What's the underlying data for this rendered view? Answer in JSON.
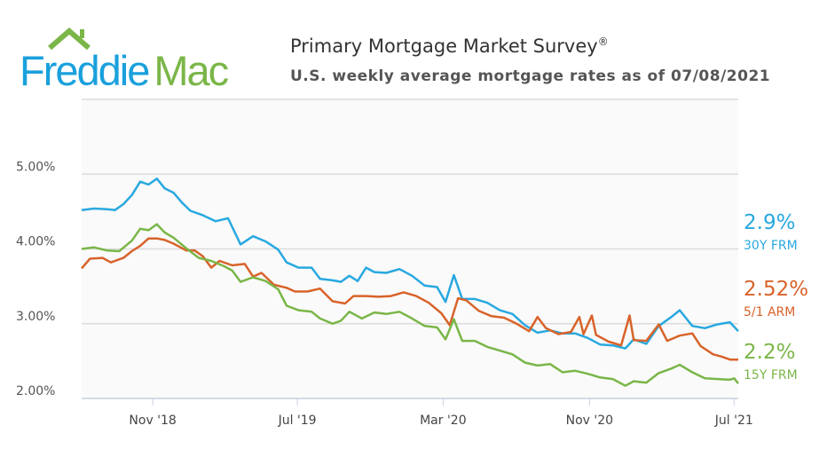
{
  "header": {
    "logo_text": "Freddie Mac",
    "logo_part1": "Freddie",
    "logo_part2": "Mac",
    "title": "Primary Mortgage Market Survey",
    "title_mark": "®",
    "subtitle": "U.S. weekly average mortgage rates as of 07/08/2021"
  },
  "colors": {
    "blue": "#29a8e0",
    "orange": "#d8632a",
    "green": "#7ab648",
    "grid": "#dcdcdc",
    "plot_bg": "#fafafa"
  },
  "chart_data": {
    "type": "line",
    "title": "Primary Mortgage Market Survey",
    "subtitle": "U.S. weekly average mortgage rates as of 07/08/2021",
    "xlim": [
      "2018-07-05",
      "2021-07-08"
    ],
    "ylim": [
      2.0,
      6.0
    ],
    "y_ticks": [
      "2.00%",
      "3.00%",
      "4.00%",
      "5.00%"
    ],
    "y_tick_values": [
      2,
      3,
      4,
      5
    ],
    "x_ticks": [
      {
        "label": "Nov '18",
        "date": "2018-11-01"
      },
      {
        "label": "Jul '19",
        "date": "2019-07-01"
      },
      {
        "label": "Mar '20",
        "date": "2020-03-01"
      },
      {
        "label": "Nov '20",
        "date": "2020-11-01"
      },
      {
        "label": "Jul '21",
        "date": "2021-07-01"
      }
    ],
    "grid": true,
    "series": [
      {
        "name": "30Y FRM",
        "end_label": "2.9%",
        "color": "#29a8e0",
        "points": [
          [
            "2018-07-05",
            4.52
          ],
          [
            "2018-07-26",
            4.54
          ],
          [
            "2018-08-16",
            4.53
          ],
          [
            "2018-08-30",
            4.52
          ],
          [
            "2018-09-13",
            4.6
          ],
          [
            "2018-09-27",
            4.72
          ],
          [
            "2018-10-11",
            4.9
          ],
          [
            "2018-10-25",
            4.86
          ],
          [
            "2018-11-08",
            4.94
          ],
          [
            "2018-11-21",
            4.81
          ],
          [
            "2018-12-06",
            4.75
          ],
          [
            "2018-12-20",
            4.62
          ],
          [
            "2019-01-03",
            4.51
          ],
          [
            "2019-01-24",
            4.45
          ],
          [
            "2019-02-14",
            4.37
          ],
          [
            "2019-03-07",
            4.41
          ],
          [
            "2019-03-28",
            4.06
          ],
          [
            "2019-04-18",
            4.17
          ],
          [
            "2019-05-09",
            4.1
          ],
          [
            "2019-05-30",
            3.99
          ],
          [
            "2019-06-13",
            3.82
          ],
          [
            "2019-07-03",
            3.75
          ],
          [
            "2019-07-25",
            3.75
          ],
          [
            "2019-08-08",
            3.6
          ],
          [
            "2019-08-29",
            3.58
          ],
          [
            "2019-09-12",
            3.56
          ],
          [
            "2019-09-26",
            3.64
          ],
          [
            "2019-10-10",
            3.57
          ],
          [
            "2019-10-24",
            3.75
          ],
          [
            "2019-11-07",
            3.69
          ],
          [
            "2019-11-27",
            3.68
          ],
          [
            "2019-12-19",
            3.73
          ],
          [
            "2020-01-09",
            3.64
          ],
          [
            "2020-01-30",
            3.51
          ],
          [
            "2020-02-20",
            3.49
          ],
          [
            "2020-03-05",
            3.29
          ],
          [
            "2020-03-19",
            3.65
          ],
          [
            "2020-04-02",
            3.33
          ],
          [
            "2020-04-23",
            3.33
          ],
          [
            "2020-05-14",
            3.28
          ],
          [
            "2020-06-04",
            3.18
          ],
          [
            "2020-06-25",
            3.13
          ],
          [
            "2020-07-16",
            2.98
          ],
          [
            "2020-08-06",
            2.88
          ],
          [
            "2020-08-27",
            2.91
          ],
          [
            "2020-09-17",
            2.87
          ],
          [
            "2020-10-08",
            2.87
          ],
          [
            "2020-10-29",
            2.81
          ],
          [
            "2020-11-19",
            2.72
          ],
          [
            "2020-12-10",
            2.71
          ],
          [
            "2020-12-31",
            2.67
          ],
          [
            "2021-01-14",
            2.79
          ],
          [
            "2021-02-04",
            2.73
          ],
          [
            "2021-02-25",
            2.97
          ],
          [
            "2021-03-18",
            3.09
          ],
          [
            "2021-04-01",
            3.18
          ],
          [
            "2021-04-22",
            2.97
          ],
          [
            "2021-05-13",
            2.94
          ],
          [
            "2021-06-03",
            2.99
          ],
          [
            "2021-06-24",
            3.02
          ],
          [
            "2021-07-08",
            2.9
          ]
        ]
      },
      {
        "name": "5/1 ARM",
        "end_label": "2.52%",
        "color": "#d8632a",
        "points": [
          [
            "2018-07-05",
            3.74
          ],
          [
            "2018-07-19",
            3.87
          ],
          [
            "2018-08-09",
            3.88
          ],
          [
            "2018-08-23",
            3.82
          ],
          [
            "2018-09-13",
            3.88
          ],
          [
            "2018-09-27",
            3.97
          ],
          [
            "2018-10-11",
            4.04
          ],
          [
            "2018-10-25",
            4.14
          ],
          [
            "2018-11-08",
            4.14
          ],
          [
            "2018-11-21",
            4.12
          ],
          [
            "2018-12-06",
            4.07
          ],
          [
            "2018-12-27",
            3.98
          ],
          [
            "2019-01-10",
            3.98
          ],
          [
            "2019-01-24",
            3.9
          ],
          [
            "2019-02-07",
            3.75
          ],
          [
            "2019-02-21",
            3.84
          ],
          [
            "2019-03-14",
            3.78
          ],
          [
            "2019-04-04",
            3.8
          ],
          [
            "2019-04-18",
            3.63
          ],
          [
            "2019-05-02",
            3.68
          ],
          [
            "2019-05-23",
            3.52
          ],
          [
            "2019-06-13",
            3.48
          ],
          [
            "2019-06-27",
            3.43
          ],
          [
            "2019-07-18",
            3.43
          ],
          [
            "2019-08-08",
            3.47
          ],
          [
            "2019-08-29",
            3.3
          ],
          [
            "2019-09-19",
            3.27
          ],
          [
            "2019-10-03",
            3.37
          ],
          [
            "2019-10-24",
            3.37
          ],
          [
            "2019-11-14",
            3.36
          ],
          [
            "2019-12-05",
            3.37
          ],
          [
            "2019-12-26",
            3.42
          ],
          [
            "2020-01-16",
            3.37
          ],
          [
            "2020-02-06",
            3.28
          ],
          [
            "2020-02-27",
            3.14
          ],
          [
            "2020-03-12",
            2.98
          ],
          [
            "2020-03-26",
            3.34
          ],
          [
            "2020-04-09",
            3.31
          ],
          [
            "2020-04-30",
            3.17
          ],
          [
            "2020-05-21",
            3.1
          ],
          [
            "2020-06-11",
            3.08
          ],
          [
            "2020-07-02",
            3.0
          ],
          [
            "2020-07-23",
            2.9
          ],
          [
            "2020-08-06",
            3.09
          ],
          [
            "2020-08-20",
            2.94
          ],
          [
            "2020-09-10",
            2.86
          ],
          [
            "2020-10-01",
            2.89
          ],
          [
            "2020-10-15",
            3.09
          ],
          [
            "2020-10-22",
            2.86
          ],
          [
            "2020-11-05",
            3.11
          ],
          [
            "2020-11-12",
            2.85
          ],
          [
            "2020-12-03",
            2.76
          ],
          [
            "2020-12-24",
            2.71
          ],
          [
            "2021-01-07",
            3.11
          ],
          [
            "2021-01-14",
            2.78
          ],
          [
            "2021-02-04",
            2.77
          ],
          [
            "2021-02-25",
            2.99
          ],
          [
            "2021-03-11",
            2.77
          ],
          [
            "2021-04-01",
            2.84
          ],
          [
            "2021-04-22",
            2.87
          ],
          [
            "2021-05-06",
            2.7
          ],
          [
            "2021-05-27",
            2.59
          ],
          [
            "2021-06-10",
            2.56
          ],
          [
            "2021-06-24",
            2.52
          ],
          [
            "2021-07-08",
            2.52
          ]
        ]
      },
      {
        "name": "15Y FRM",
        "end_label": "2.2%",
        "color": "#7ab648",
        "points": [
          [
            "2018-07-05",
            4.0
          ],
          [
            "2018-07-26",
            4.02
          ],
          [
            "2018-08-16",
            3.98
          ],
          [
            "2018-09-06",
            3.97
          ],
          [
            "2018-09-27",
            4.11
          ],
          [
            "2018-10-11",
            4.27
          ],
          [
            "2018-10-25",
            4.25
          ],
          [
            "2018-11-08",
            4.33
          ],
          [
            "2018-11-21",
            4.22
          ],
          [
            "2018-12-06",
            4.15
          ],
          [
            "2018-12-27",
            4.01
          ],
          [
            "2019-01-17",
            3.88
          ],
          [
            "2019-02-07",
            3.84
          ],
          [
            "2019-02-28",
            3.77
          ],
          [
            "2019-03-14",
            3.71
          ],
          [
            "2019-03-28",
            3.56
          ],
          [
            "2019-04-18",
            3.62
          ],
          [
            "2019-05-09",
            3.57
          ],
          [
            "2019-05-30",
            3.46
          ],
          [
            "2019-06-13",
            3.24
          ],
          [
            "2019-07-03",
            3.18
          ],
          [
            "2019-07-25",
            3.16
          ],
          [
            "2019-08-08",
            3.07
          ],
          [
            "2019-08-29",
            3.0
          ],
          [
            "2019-09-12",
            3.04
          ],
          [
            "2019-09-26",
            3.16
          ],
          [
            "2019-10-17",
            3.07
          ],
          [
            "2019-11-07",
            3.15
          ],
          [
            "2019-11-27",
            3.13
          ],
          [
            "2019-12-19",
            3.16
          ],
          [
            "2020-01-09",
            3.07
          ],
          [
            "2020-01-30",
            2.97
          ],
          [
            "2020-02-20",
            2.95
          ],
          [
            "2020-03-05",
            2.79
          ],
          [
            "2020-03-19",
            3.06
          ],
          [
            "2020-04-02",
            2.77
          ],
          [
            "2020-04-23",
            2.77
          ],
          [
            "2020-05-14",
            2.69
          ],
          [
            "2020-06-04",
            2.64
          ],
          [
            "2020-06-25",
            2.59
          ],
          [
            "2020-07-16",
            2.48
          ],
          [
            "2020-08-06",
            2.44
          ],
          [
            "2020-08-27",
            2.46
          ],
          [
            "2020-09-17",
            2.35
          ],
          [
            "2020-10-08",
            2.37
          ],
          [
            "2020-10-29",
            2.33
          ],
          [
            "2020-11-19",
            2.28
          ],
          [
            "2020-12-10",
            2.26
          ],
          [
            "2020-12-31",
            2.17
          ],
          [
            "2021-01-14",
            2.23
          ],
          [
            "2021-02-04",
            2.21
          ],
          [
            "2021-02-25",
            2.34
          ],
          [
            "2021-03-18",
            2.4
          ],
          [
            "2021-04-01",
            2.45
          ],
          [
            "2021-04-22",
            2.35
          ],
          [
            "2021-05-13",
            2.27
          ],
          [
            "2021-06-03",
            2.26
          ],
          [
            "2021-06-24",
            2.25
          ],
          [
            "2021-07-01",
            2.27
          ],
          [
            "2021-07-08",
            2.2
          ]
        ]
      }
    ]
  }
}
